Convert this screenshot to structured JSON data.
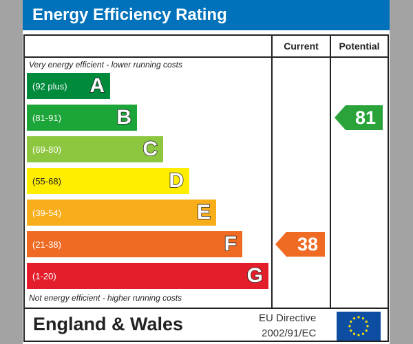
{
  "chart_data": {
    "type": "table",
    "title": "Energy Efficiency Rating",
    "columns": [
      "Current",
      "Potential"
    ],
    "top_note": "Very energy efficient - lower running costs",
    "bottom_note": "Not energy efficient - higher running costs",
    "bands": [
      {
        "letter": "A",
        "range": "(92 plus)",
        "color": "#008a3c"
      },
      {
        "letter": "B",
        "range": "(81-91)",
        "color": "#1ca538"
      },
      {
        "letter": "C",
        "range": "(69-80)",
        "color": "#8dc63f"
      },
      {
        "letter": "D",
        "range": "(55-68)",
        "color": "#ffed00"
      },
      {
        "letter": "E",
        "range": "(39-54)",
        "color": "#f8ae1b"
      },
      {
        "letter": "F",
        "range": "(21-38)",
        "color": "#ef6b24"
      },
      {
        "letter": "G",
        "range": "(1-20)",
        "color": "#e31d2a"
      }
    ],
    "current": {
      "value": 38,
      "band": "F",
      "color": "#ef6b24"
    },
    "potential": {
      "value": 81,
      "band": "B",
      "color": "#29a33a"
    },
    "footer": {
      "region": "England & Wales",
      "directive_line1": "EU Directive",
      "directive_line2": "2002/91/EC"
    }
  }
}
